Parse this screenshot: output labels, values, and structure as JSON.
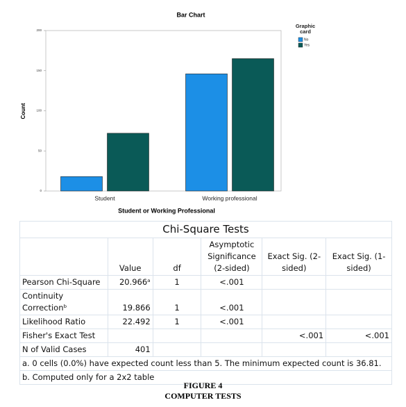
{
  "chart_data": {
    "type": "bar",
    "title": "Bar Chart",
    "x_label": "Student or Working Professional",
    "y_label": "Count",
    "categories": [
      "Student",
      "Working professional"
    ],
    "series": [
      {
        "name": "No",
        "color": "#1c8fe6",
        "values": [
          18,
          146
        ]
      },
      {
        "name": "Yes",
        "color": "#0a5a57",
        "values": [
          72,
          165
        ]
      }
    ],
    "legend_title": "Graphic card",
    "legend": "right",
    "ylim": [
      0,
      200
    ],
    "yticks": [
      0,
      50,
      100,
      150,
      200
    ],
    "grid": false
  },
  "table": {
    "title": "Chi-Square Tests",
    "header": [
      null,
      "Value",
      "df",
      "Asymptotic Significance (2-sided)",
      "Exact Sig. (2-sided)",
      "Exact Sig. (1-sided)"
    ],
    "rows": [
      [
        "Pearson Chi-Square",
        "20.966ᵃ",
        "1",
        "<.001",
        null,
        null
      ],
      [
        "Continuity Correctionᵇ",
        "19.866",
        "1",
        "<.001",
        null,
        null
      ],
      [
        "Likelihood Ratio",
        "22.492",
        "1",
        "<.001",
        null,
        null
      ],
      [
        "Fisher's Exact Test",
        null,
        null,
        null,
        "<.001",
        "<.001"
      ],
      [
        "N of Valid Cases",
        "401",
        null,
        null,
        null,
        null
      ]
    ],
    "footnotes": [
      "a. 0 cells (0.0%) have expected count less than 5. The minimum expected count is 36.81.",
      "b. Computed only for a 2x2 table"
    ]
  },
  "caption": [
    "FIGURE 4",
    "COMPUTER TESTS"
  ]
}
